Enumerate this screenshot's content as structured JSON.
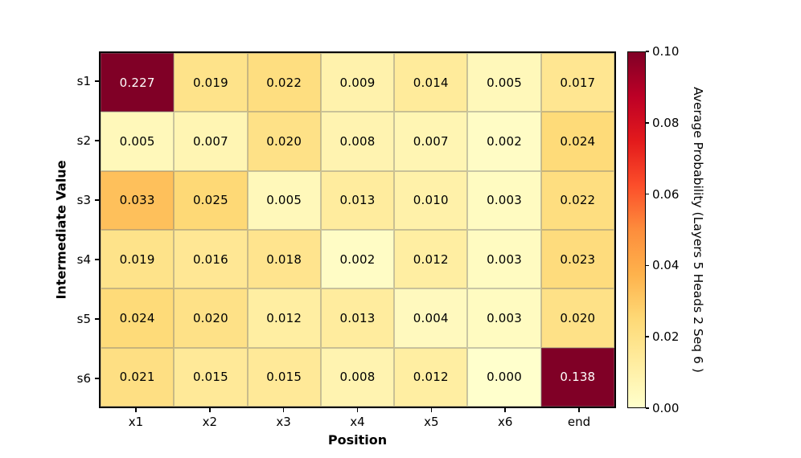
{
  "chart_data": {
    "type": "heatmap",
    "title": "",
    "xlabel": "Position",
    "ylabel": "Intermediate Value",
    "x_categories": [
      "x1",
      "x2",
      "x3",
      "x4",
      "x5",
      "x6",
      "end"
    ],
    "y_categories": [
      "s1",
      "s2",
      "s3",
      "s4",
      "s5",
      "s6"
    ],
    "values": [
      [
        0.227,
        0.019,
        0.022,
        0.009,
        0.014,
        0.005,
        0.017
      ],
      [
        0.005,
        0.007,
        0.02,
        0.008,
        0.007,
        0.002,
        0.024
      ],
      [
        0.033,
        0.025,
        0.005,
        0.013,
        0.01,
        0.003,
        0.022
      ],
      [
        0.019,
        0.016,
        0.018,
        0.002,
        0.012,
        0.003,
        0.023
      ],
      [
        0.024,
        0.02,
        0.012,
        0.013,
        0.004,
        0.003,
        0.02
      ],
      [
        0.021,
        0.015,
        0.015,
        0.008,
        0.012,
        0.0,
        0.138
      ]
    ],
    "value_decimals": 3,
    "grid": true,
    "legend_position": "right-colorbar",
    "colorbar": {
      "label": "Average Probability (Layers 5 Heads 2 Seq 6 )",
      "tick_labels": [
        "0.10",
        "0.08",
        "0.06",
        "0.04",
        "0.02",
        "0.00"
      ],
      "vmin": 0.0,
      "vmax": 0.1,
      "colormap": "YlOrRd",
      "colormap_stops": [
        "#ffffcc",
        "#ffeda0",
        "#fed976",
        "#feb24c",
        "#fd8d3c",
        "#fc4e2a",
        "#e31a1c",
        "#bd0026",
        "#800026"
      ]
    },
    "colors": {
      "cell_text_on_dark": "#ffffff",
      "cell_text_on_light": "#000000",
      "max_color": "#800026",
      "min_color": "#ffffcc"
    }
  }
}
